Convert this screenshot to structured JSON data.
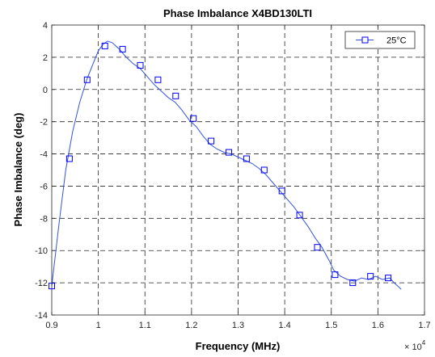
{
  "chart_data": {
    "type": "line",
    "title": "Phase Imbalance  X4BD130LTI",
    "xlabel": "Frequency (MHz)",
    "ylabel": "Phase Imbalance (deg)",
    "x_exponent_label": "× 10",
    "x_exponent_power": "4",
    "xlim": [
      9000,
      17000
    ],
    "ylim": [
      -14,
      4
    ],
    "x_tick_values": [
      9000,
      10000,
      11000,
      12000,
      13000,
      14000,
      15000,
      16000,
      17000
    ],
    "x_tick_labels": [
      "0.9",
      "1",
      "1.1",
      "1.2",
      "1.3",
      "1.4",
      "1.5",
      "1.6",
      "1.7"
    ],
    "y_tick_values": [
      4,
      2,
      0,
      -2,
      -4,
      -6,
      -8,
      -10,
      -12,
      -14
    ],
    "y_tick_labels": [
      "4",
      "2",
      "0",
      "-2",
      "-4",
      "-6",
      "-8",
      "-10",
      "-12",
      "-14"
    ],
    "grid": true,
    "legend": {
      "position": "top-right"
    },
    "series": [
      {
        "name": "25°C",
        "color": "#0000ff",
        "line_color": "#3355dd",
        "marker": "square",
        "x": [
          9000,
          9150,
          9300,
          9450,
          9600,
          9750,
          9900,
          10000,
          10100,
          10200,
          10300,
          10450,
          10600,
          10750,
          10900,
          11050,
          11200,
          11350,
          11500,
          11650,
          11800,
          11950,
          12100,
          12250,
          12400,
          12550,
          12700,
          12850,
          13000,
          13150,
          13300,
          13450,
          13600,
          13750,
          13900,
          14050,
          14200,
          14350,
          14500,
          14650,
          14800,
          14950,
          15050,
          15200,
          15350,
          15500,
          15650,
          15800,
          15950,
          16100,
          16250,
          16350,
          16500
        ],
        "y": [
          -12.2,
          -8.5,
          -5.0,
          -2.6,
          -0.8,
          0.6,
          1.7,
          2.4,
          2.8,
          3.0,
          2.9,
          2.5,
          2.0,
          1.6,
          1.3,
          0.8,
          0.3,
          -0.1,
          -0.5,
          -0.8,
          -1.3,
          -1.9,
          -2.3,
          -2.9,
          -3.4,
          -3.7,
          -3.9,
          -4.0,
          -4.2,
          -4.4,
          -4.6,
          -4.9,
          -5.3,
          -5.8,
          -6.3,
          -6.8,
          -7.3,
          -7.9,
          -8.5,
          -9.2,
          -9.8,
          -10.6,
          -11.2,
          -11.6,
          -11.8,
          -11.9,
          -11.7,
          -11.8,
          -11.6,
          -11.8,
          -11.7,
          -12.0,
          -12.4
        ],
        "marker_x": [
          9000,
          9380,
          9760,
          10140,
          10520,
          10900,
          11280,
          11660,
          12040,
          12420,
          12800,
          13180,
          13560,
          13940,
          14320,
          14700,
          15080,
          15460,
          15840,
          16220
        ],
        "marker_y": [
          -12.2,
          -4.3,
          0.6,
          2.7,
          2.5,
          1.5,
          0.6,
          -0.4,
          -1.8,
          -3.2,
          -3.9,
          -4.3,
          -5.0,
          -6.3,
          -7.8,
          -9.8,
          -11.5,
          -12.0,
          -11.6,
          -11.7
        ]
      }
    ]
  }
}
